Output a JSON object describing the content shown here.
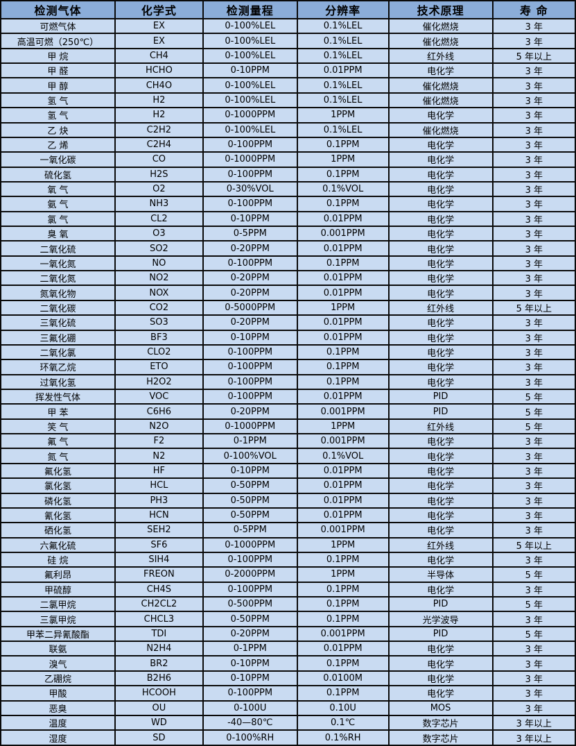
{
  "colors": {
    "header_bg": "#8badd9",
    "row_bg": "#c9dbf2",
    "border": "#0a0a0a",
    "text": "#000000"
  },
  "table": {
    "headers": [
      "检测气体",
      "化学式",
      "检测量程",
      "分辨率",
      "技术原理",
      "寿 命"
    ],
    "rows": [
      [
        "可燃气体",
        "EX",
        "0-100%LEL",
        "0.1%LEL",
        "催化燃烧",
        "3 年"
      ],
      [
        "高温可燃（250℃）",
        "EX",
        "0-100%LEL",
        "0.1%LEL",
        "催化燃烧",
        "3 年"
      ],
      [
        "甲 烷",
        "CH4",
        "0-100%LEL",
        "0.1%LEL",
        "红外线",
        "5 年以上"
      ],
      [
        "甲 醛",
        "HCHO",
        "0-10PPM",
        "0.01PPM",
        "电化学",
        "3 年"
      ],
      [
        "甲 醇",
        "CH4O",
        "0-100%LEL",
        "0.1%LEL",
        "催化燃烧",
        "3 年"
      ],
      [
        "氢 气",
        "H2",
        "0-100%LEL",
        "0.1%LEL",
        "催化燃烧",
        "3 年"
      ],
      [
        "氢 气",
        "H2",
        "0-1000PPM",
        "1PPM",
        "电化学",
        "3 年"
      ],
      [
        "乙 炔",
        "C2H2",
        "0-100%LEL",
        "0.1%LEL",
        "催化燃烧",
        "3 年"
      ],
      [
        "乙 烯",
        "C2H4",
        "0-100PPM",
        "0.1PPM",
        "电化学",
        "3 年"
      ],
      [
        "一氧化碳",
        "CO",
        "0-1000PPM",
        "1PPM",
        "电化学",
        "3 年"
      ],
      [
        "硫化氢",
        "H2S",
        "0-100PPM",
        "0.1PPM",
        "电化学",
        "3 年"
      ],
      [
        "氧 气",
        "O2",
        "0-30%VOL",
        "0.1%VOL",
        "电化学",
        "3 年"
      ],
      [
        "氨 气",
        "NH3",
        "0-100PPM",
        "0.1PPM",
        "电化学",
        "3 年"
      ],
      [
        "氯 气",
        "CL2",
        "0-10PPM",
        "0.01PPM",
        "电化学",
        "3 年"
      ],
      [
        "臭 氧",
        "O3",
        "0-5PPM",
        "0.001PPM",
        "电化学",
        "3 年"
      ],
      [
        "二氧化硫",
        "SO2",
        "0-20PPM",
        "0.01PPM",
        "电化学",
        "3 年"
      ],
      [
        "一氧化氮",
        "NO",
        "0-100PPM",
        "0.1PPM",
        "电化学",
        "3 年"
      ],
      [
        "二氧化氮",
        "NO2",
        "0-20PPM",
        "0.01PPM",
        "电化学",
        "3 年"
      ],
      [
        "氮氧化物",
        "NOX",
        "0-20PPM",
        "0.01PPM",
        "电化学",
        "3 年"
      ],
      [
        "二氧化碳",
        "CO2",
        "0-5000PPM",
        "1PPM",
        "红外线",
        "5 年以上"
      ],
      [
        "三氧化硫",
        "SO3",
        "0-20PPM",
        "0.01PPM",
        "电化学",
        "3 年"
      ],
      [
        "三氟化硼",
        "BF3",
        "0-10PPM",
        "0.01PPM",
        "电化学",
        "3 年"
      ],
      [
        "二氧化氯",
        "CLO2",
        "0-100PPM",
        "0.1PPM",
        "电化学",
        "3 年"
      ],
      [
        "环氧乙烷",
        "ETO",
        "0-100PPM",
        "0.1PPM",
        "电化学",
        "3 年"
      ],
      [
        "过氧化氢",
        "H2O2",
        "0-100PPM",
        "0.1PPM",
        "电化学",
        "3 年"
      ],
      [
        "挥发性气体",
        "VOC",
        "0-100PPM",
        "0.01PPM",
        "PID",
        "5 年"
      ],
      [
        "甲 苯",
        "C6H6",
        "0-20PPM",
        "0.001PPM",
        "PID",
        "5 年"
      ],
      [
        "笑 气",
        "N2O",
        "0-1000PPM",
        "1PPM",
        "红外线",
        "5 年"
      ],
      [
        "氟 气",
        "F2",
        "0-1PPM",
        "0.001PPM",
        "电化学",
        "3 年"
      ],
      [
        "氮 气",
        "N2",
        "0-100%VOL",
        "0.1%VOL",
        "电化学",
        "3 年"
      ],
      [
        "氟化氢",
        "HF",
        "0-10PPM",
        "0.01PPM",
        "电化学",
        "3 年"
      ],
      [
        "氯化氢",
        "HCL",
        "0-50PPM",
        "0.01PPM",
        "电化学",
        "3 年"
      ],
      [
        "磷化氢",
        "PH3",
        "0-50PPM",
        "0.01PPM",
        "电化学",
        "3 年"
      ],
      [
        "氰化氢",
        "HCN",
        "0-50PPM",
        "0.01PPM",
        "电化学",
        "3 年"
      ],
      [
        "硒化氢",
        "SEH2",
        "0-5PPM",
        "0.001PPM",
        "电化学",
        "3 年"
      ],
      [
        "六氟化硫",
        "SF6",
        "0-1000PPM",
        "1PPM",
        "红外线",
        "5 年以上"
      ],
      [
        "硅 烷",
        "SIH4",
        "0-100PPM",
        "0.1PPM",
        "电化学",
        "3 年"
      ],
      [
        "氟利昂",
        "FREON",
        "0-2000PPM",
        "1PPM",
        "半导体",
        "5 年"
      ],
      [
        "甲硫醇",
        "CH4S",
        "0-100PPM",
        "0.1PPM",
        "电化学",
        "3 年"
      ],
      [
        "二氯甲烷",
        "CH2CL2",
        "0-500PPM",
        "0.1PPM",
        "PID",
        "5 年"
      ],
      [
        "三氯甲烷",
        "CHCL3",
        "0-50PPM",
        "0.1PPM",
        "光学波导",
        "3 年"
      ],
      [
        "甲苯二异氰酸酯",
        "TDI",
        "0-20PPM",
        "0.001PPM",
        "PID",
        "5 年"
      ],
      [
        "联氨",
        "N2H4",
        "0-1PPM",
        "0.01PPM",
        "电化学",
        "3 年"
      ],
      [
        "溴气",
        "BR2",
        "0-10PPM",
        "0.1PPM",
        "电化学",
        "3 年"
      ],
      [
        "乙硼烷",
        "B2H6",
        "0-10PPM",
        "0.0100M",
        "电化学",
        "3 年"
      ],
      [
        "甲酸",
        "HCOOH",
        "0-100PPM",
        "0.1PPM",
        "电化学",
        "3 年"
      ],
      [
        "恶臭",
        "OU",
        "0-100U",
        "0.10U",
        "MOS",
        "3 年"
      ],
      [
        "温度",
        "WD",
        "-40—80℃",
        "0.1℃",
        "数字芯片",
        "3 年以上"
      ],
      [
        "湿度",
        "SD",
        "0-100%RH",
        "0.1%RH",
        "数字芯片",
        "3 年以上"
      ]
    ]
  }
}
